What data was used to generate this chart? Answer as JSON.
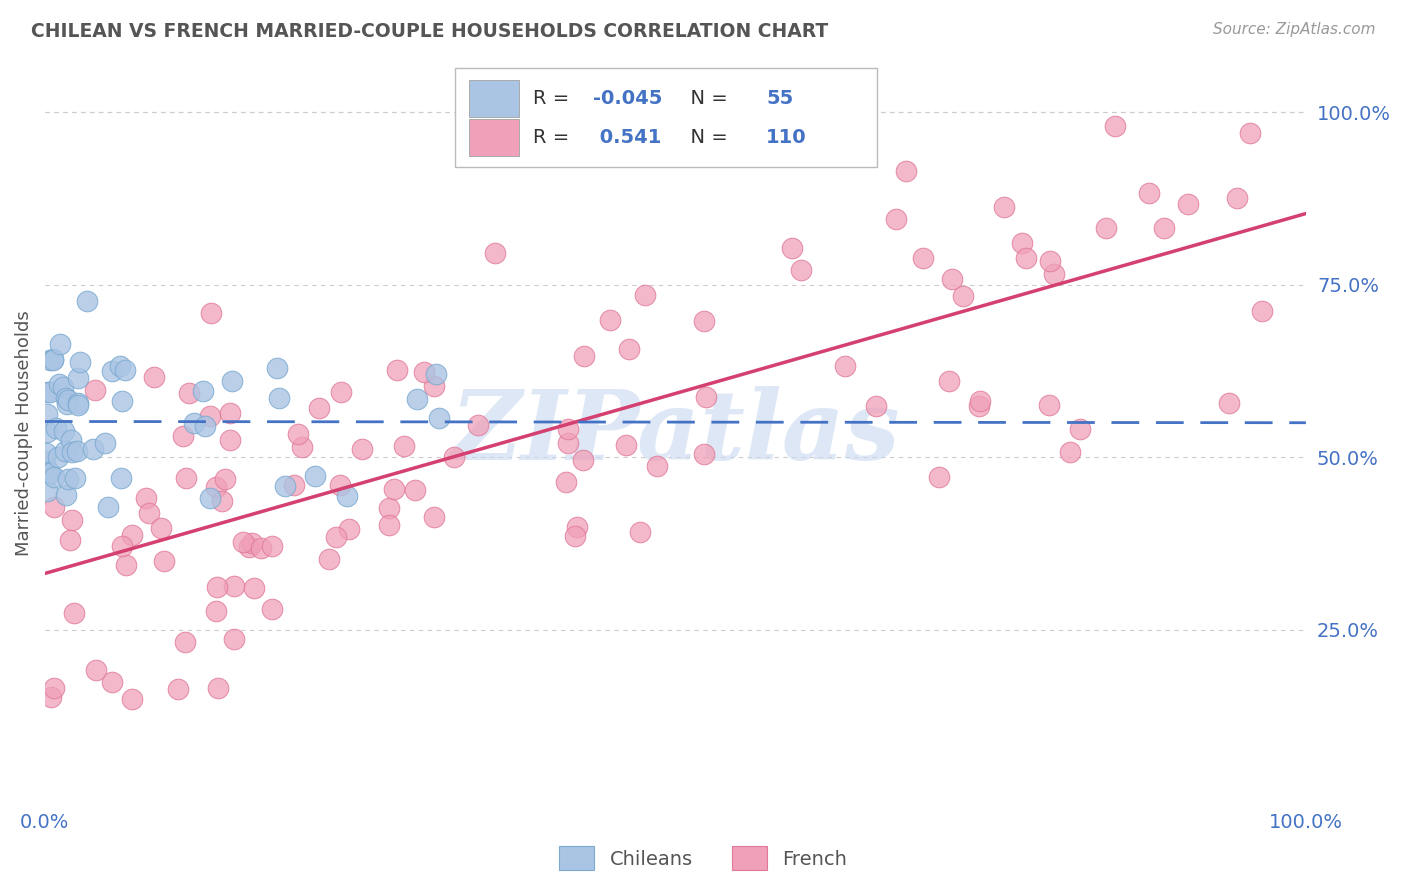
{
  "title": "CHILEAN VS FRENCH MARRIED-COUPLE HOUSEHOLDS CORRELATION CHART",
  "source_text": "Source: ZipAtlas.com",
  "ylabel": "Married-couple Households",
  "xlim": [
    0.0,
    1.0
  ],
  "ylim": [
    0.0,
    1.07
  ],
  "ytick_vals": [
    0.25,
    0.5,
    0.75,
    1.0
  ],
  "ytick_labels": [
    "25.0%",
    "50.0%",
    "75.0%",
    "100.0%"
  ],
  "xtick_left": "0.0%",
  "xtick_right": "100.0%",
  "chilean_color": "#aac4e4",
  "french_color": "#f0a0b8",
  "chilean_edge_color": "#7aaad0",
  "french_edge_color": "#e07898",
  "chilean_line_color": "#4472c4",
  "french_line_color": "#d44070",
  "r_chilean": -0.045,
  "n_chilean": 55,
  "r_french": 0.541,
  "n_french": 110,
  "legend_labels": [
    "Chileans",
    "French"
  ],
  "watermark": "ZIPatlas",
  "watermark_color": "#c8d8f0",
  "grid_color": "#cccccc",
  "text_color": "#555555",
  "tick_color": "#4472c4",
  "legend_r_color": "#4472c4",
  "legend_black": "#333333"
}
